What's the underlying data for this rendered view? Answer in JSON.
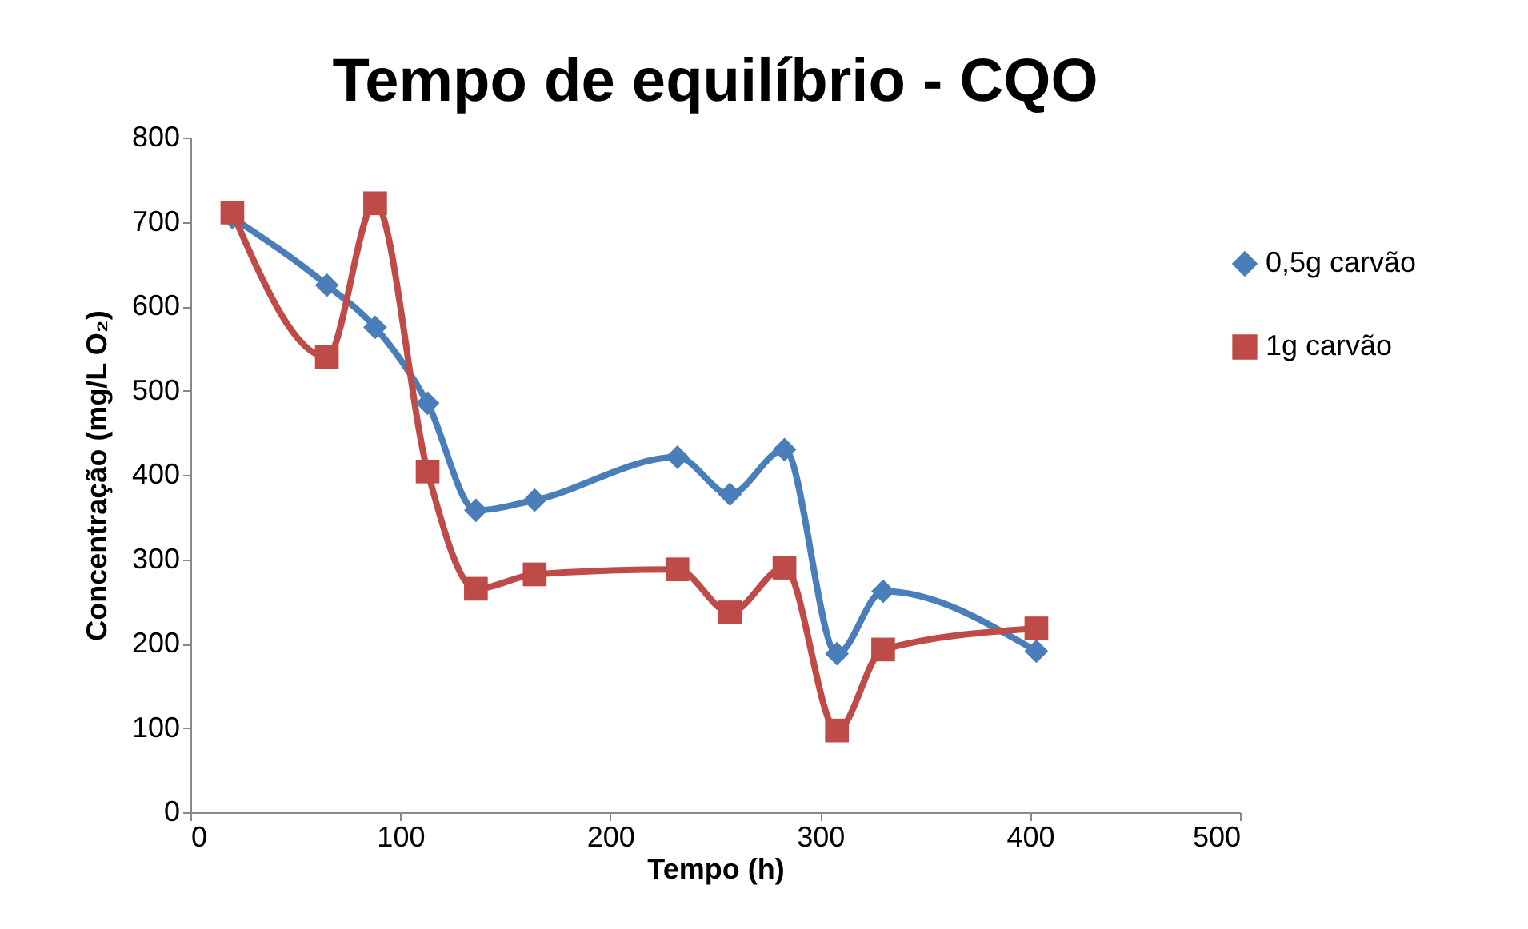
{
  "chart_data": {
    "type": "line",
    "title": "Tempo de equilíbrio - CQO",
    "xlabel": "Tempo (h)",
    "ylabel": "Concentração (mg/L O₂)",
    "x": [
      20,
      65,
      88,
      113,
      136,
      164,
      232,
      257,
      283,
      308,
      330,
      403
    ],
    "series": [
      {
        "name": "0,5g carvão",
        "color": "#4a7ebb",
        "marker": "diamond",
        "values": [
          705,
          625,
          575,
          485,
          358,
          370,
          421,
          377,
          430,
          188,
          262,
          191
        ]
      },
      {
        "name": "1g carvão",
        "color": "#be4b48",
        "marker": "square",
        "values": [
          711,
          540,
          722,
          404,
          265,
          282,
          288,
          237,
          290,
          97,
          193,
          218
        ]
      }
    ],
    "xlim": [
      0,
      500
    ],
    "xticks": [
      0,
      100,
      200,
      300,
      400,
      500
    ],
    "ylim": [
      0,
      800
    ],
    "yticks": [
      0,
      100,
      200,
      300,
      400,
      500,
      600,
      700,
      800
    ],
    "grid": false,
    "legend": "right",
    "line_style": "solid"
  }
}
